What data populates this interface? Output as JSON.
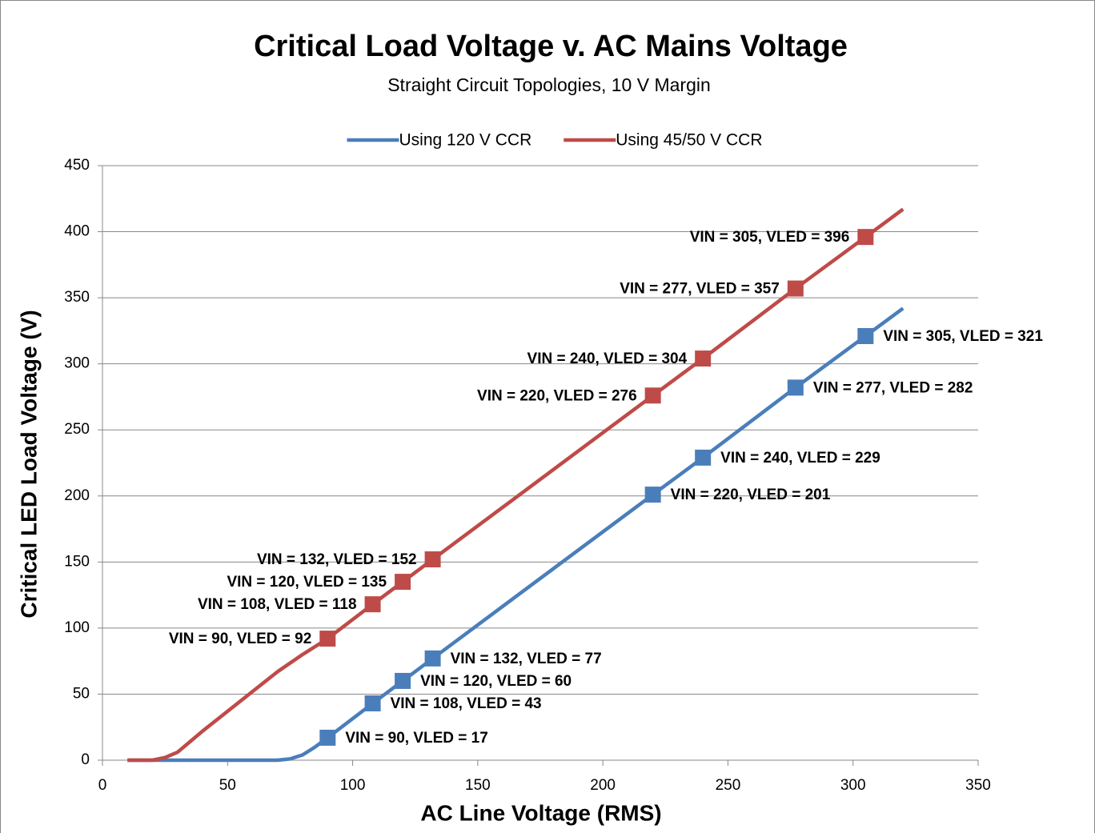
{
  "chart_data": {
    "type": "line",
    "title": "Critical Load Voltage v. AC Mains Voltage",
    "subtitle": "Straight Circuit Topologies, 10 V Margin",
    "x_label": "AC Line Voltage (RMS)",
    "y_label": "Critical LED Load Voltage (V)",
    "xlim": [
      0,
      350
    ],
    "xticks": [
      0,
      50,
      100,
      150,
      200,
      250,
      300,
      350
    ],
    "ylim": [
      0,
      450
    ],
    "yticks": [
      0,
      50,
      100,
      150,
      200,
      250,
      300,
      350,
      400,
      450
    ],
    "grid": true,
    "legend": "top",
    "series": [
      {
        "name": "Using 120 V CCR",
        "color": "#4a7ebb",
        "label_side": "right",
        "x": [
          10,
          20,
          30,
          40,
          50,
          60,
          70,
          75,
          80,
          85,
          90,
          108,
          120,
          132,
          220,
          240,
          277,
          305,
          320
        ],
        "values": [
          0,
          0,
          0,
          0,
          0,
          0,
          0,
          1,
          4,
          10,
          17,
          43,
          60,
          77,
          201,
          229,
          282,
          321,
          342
        ],
        "markers": {
          "x": [
            90,
            108,
            120,
            132,
            220,
            240,
            277,
            305
          ],
          "values": [
            17,
            43,
            60,
            77,
            201,
            229,
            282,
            321
          ],
          "value_labels": [
            "VIN = 90, VLED = 17",
            "VIN = 108, VLED = 43",
            "VIN = 120, VLED = 60",
            "VIN = 132, VLED = 77",
            "VIN = 220, VLED = 201",
            "VIN = 240, VLED = 229",
            "VIN = 277, VLED = 282",
            "VIN = 305, VLED = 321"
          ]
        }
      },
      {
        "name": "Using 45/50 V CCR",
        "color": "#be4b48",
        "label_side": "left",
        "x": [
          10,
          20,
          25,
          30,
          35,
          40,
          50,
          60,
          70,
          80,
          90,
          108,
          120,
          132,
          220,
          240,
          277,
          305,
          320
        ],
        "values": [
          0,
          0,
          2,
          6,
          14,
          22,
          37,
          52,
          67,
          80,
          92,
          118,
          135,
          152,
          276,
          304,
          357,
          396,
          417
        ],
        "markers": {
          "x": [
            90,
            108,
            120,
            132,
            220,
            240,
            277,
            305
          ],
          "values": [
            92,
            118,
            135,
            152,
            276,
            304,
            357,
            396
          ],
          "value_labels": [
            "VIN = 90, VLED = 92",
            "VIN = 108, VLED = 118",
            "VIN = 120, VLED = 135",
            "VIN = 132, VLED = 152",
            "VIN = 220, VLED = 276",
            "VIN = 240, VLED = 304",
            "VIN = 277, VLED = 357",
            "VIN = 305, VLED = 396"
          ]
        }
      }
    ]
  }
}
